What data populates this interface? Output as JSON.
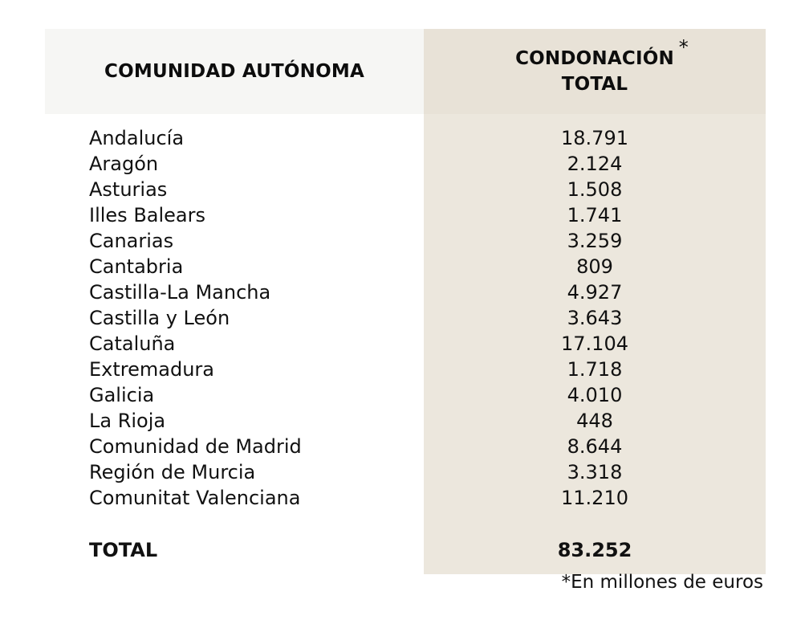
{
  "table": {
    "header_left": "COMUNIDAD AUTÓNOMA",
    "header_right_line1": "CONDONACIÓN",
    "header_right_asterisk": "*",
    "header_right_line2": "TOTAL",
    "rows": [
      {
        "name": "Andalucía",
        "value": "18.791"
      },
      {
        "name": "Aragón",
        "value": "2.124"
      },
      {
        "name": "Asturias",
        "value": "1.508"
      },
      {
        "name": "Illes Balears",
        "value": "1.741"
      },
      {
        "name": "Canarias",
        "value": "3.259"
      },
      {
        "name": "Cantabria",
        "value": "809"
      },
      {
        "name": "Castilla-La Mancha",
        "value": "4.927"
      },
      {
        "name": "Castilla y León",
        "value": "3.643"
      },
      {
        "name": "Cataluña",
        "value": "17.104"
      },
      {
        "name": "Extremadura",
        "value": "1.718"
      },
      {
        "name": "Galicia",
        "value": "4.010"
      },
      {
        "name": "La Rioja",
        "value": "448"
      },
      {
        "name": "Comunidad de Madrid",
        "value": "8.644"
      },
      {
        "name": "Región de Murcia",
        "value": "3.318"
      },
      {
        "name": "Comunitat Valenciana",
        "value": "11.210"
      }
    ],
    "total_label": "TOTAL",
    "total_value": "83.252"
  },
  "footnote": "*En millones de euros",
  "colors": {
    "header_left_bg": "#f6f6f4",
    "value_column_bg": "#ece7dd"
  }
}
